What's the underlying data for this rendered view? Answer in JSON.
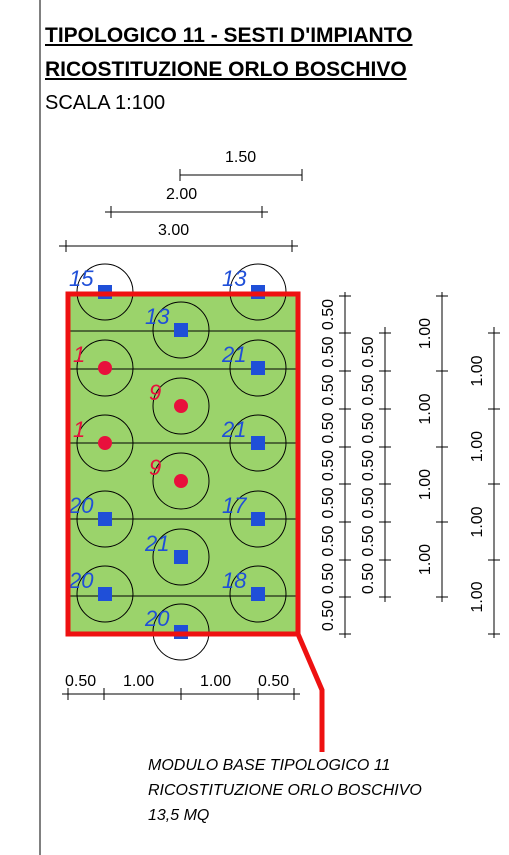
{
  "header": {
    "title_line1": "TIPOLOGICO 11 - SESTI D'IMPIANTO",
    "title_line2": "RICOSTITUZIONE ORLO BOSCHIVO",
    "scale": "SCALA 1:100"
  },
  "top_dimensions": [
    "1.50",
    "2.00",
    "3.00"
  ],
  "bottom_dimensions": [
    "0.50",
    "1.00",
    "1.00",
    "0.50"
  ],
  "side_dimensions": {
    "column1": [
      "0.50",
      "0.50",
      "0.50",
      "0.50",
      "0.50",
      "0.50",
      "0.50",
      "0.50",
      "0.50"
    ],
    "column2": [
      "1.00",
      "1.00",
      "1.00",
      "1.00"
    ],
    "column3": [
      "1.00",
      "1.00",
      "1.00",
      "1.00"
    ]
  },
  "plants": [
    {
      "label": "15",
      "symbol": "square"
    },
    {
      "label": "13",
      "symbol": "square"
    },
    {
      "label": "13",
      "symbol": "square"
    },
    {
      "label": "1",
      "symbol": "dot"
    },
    {
      "label": "21",
      "symbol": "square"
    },
    {
      "label": "9",
      "symbol": "dot"
    },
    {
      "label": "1",
      "symbol": "dot"
    },
    {
      "label": "21",
      "symbol": "square"
    },
    {
      "label": "9",
      "symbol": "dot"
    },
    {
      "label": "20",
      "symbol": "square"
    },
    {
      "label": "17",
      "symbol": "square"
    },
    {
      "label": "21",
      "symbol": "square"
    },
    {
      "label": "20",
      "symbol": "square"
    },
    {
      "label": "18",
      "symbol": "square"
    },
    {
      "label": "20",
      "symbol": "square"
    }
  ],
  "caption": {
    "line1": "MODULO BASE TIPOLOGICO 11",
    "line2": "RICOSTITUZIONE ORLO BOSCHIVO",
    "line3": "13,5 MQ"
  },
  "colors": {
    "module_fill": "#9bd36b",
    "module_border": "#ee1111",
    "square_symbol": "#1f4fd8",
    "dot_symbol": "#e8103c",
    "label_blue": "#1f4fd8",
    "label_red": "#e8103c"
  }
}
